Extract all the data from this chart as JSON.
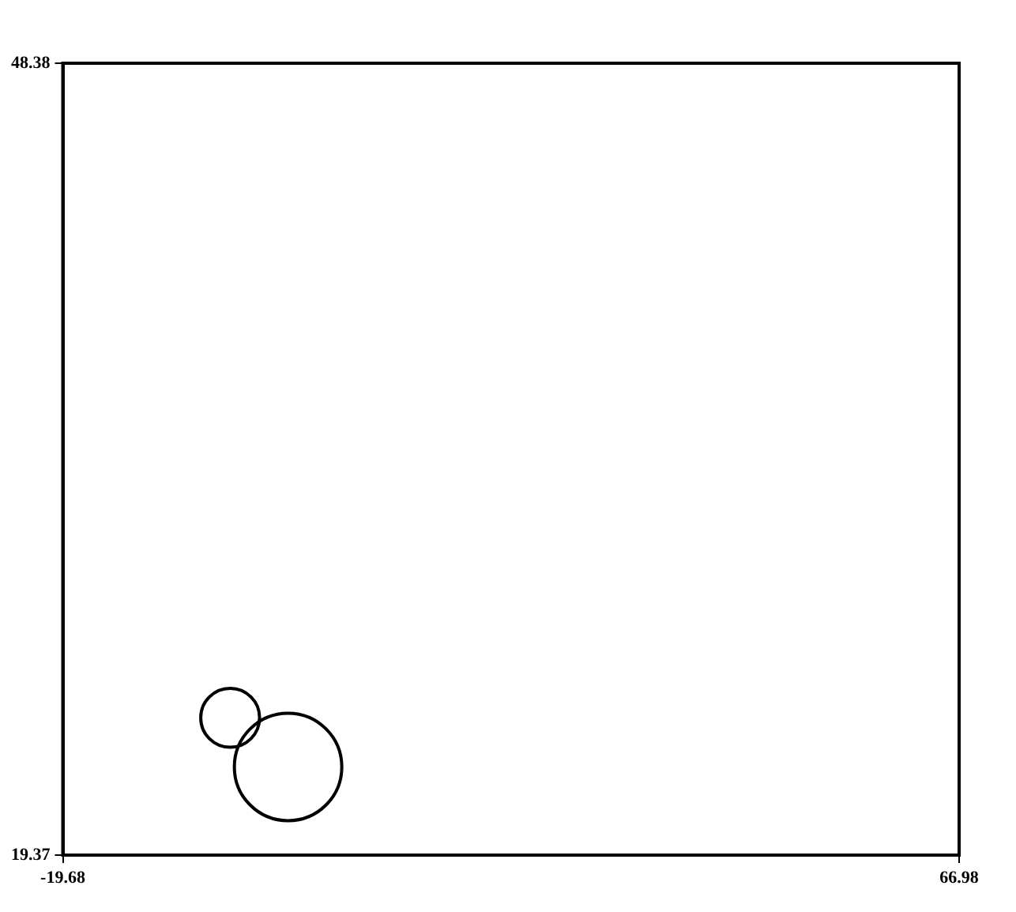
{
  "chart_data": {
    "type": "bubble",
    "x": [
      -3.5,
      2.1
    ],
    "values": [
      24.4,
      22.6
    ],
    "sizes": [
      0.3,
      1
    ],
    "color": "#000000",
    "xlim": [
      -19.68,
      66.98
    ],
    "xticks": [
      -19.68,
      66.98
    ],
    "ylim": [
      19.37,
      48.38
    ],
    "yticks": [
      19.37,
      48.38
    ],
    "legend": false
  }
}
